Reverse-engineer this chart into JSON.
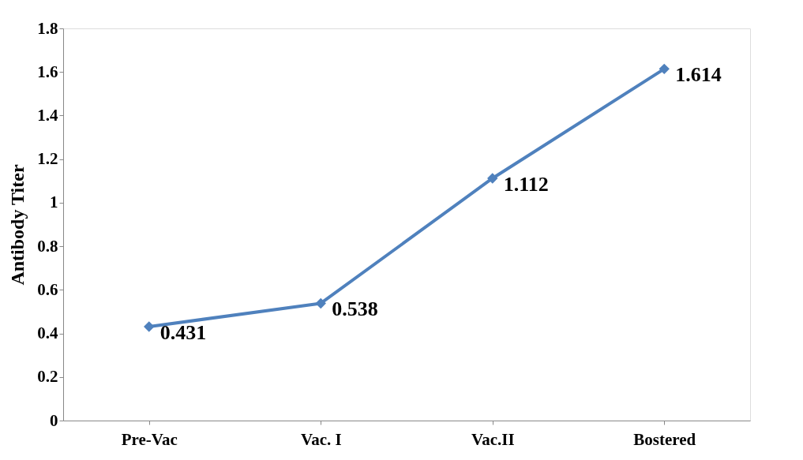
{
  "chart_data": {
    "type": "line",
    "ylabel": "Antibody Titer",
    "categories": [
      "Pre-Vac",
      "Vac. I",
      "Vac.II",
      "Bostered"
    ],
    "series": [
      {
        "color": "#4f81bd",
        "values": [
          0.431,
          0.538,
          1.112,
          1.614
        ]
      }
    ],
    "ylim": [
      0,
      1.8
    ],
    "yticks": [
      0,
      0.2,
      0.4,
      0.6,
      0.8,
      1,
      1.2,
      1.4,
      1.6,
      1.8
    ],
    "grid": false,
    "marker": "diamond",
    "line_style": "solid",
    "data_labels": true
  }
}
